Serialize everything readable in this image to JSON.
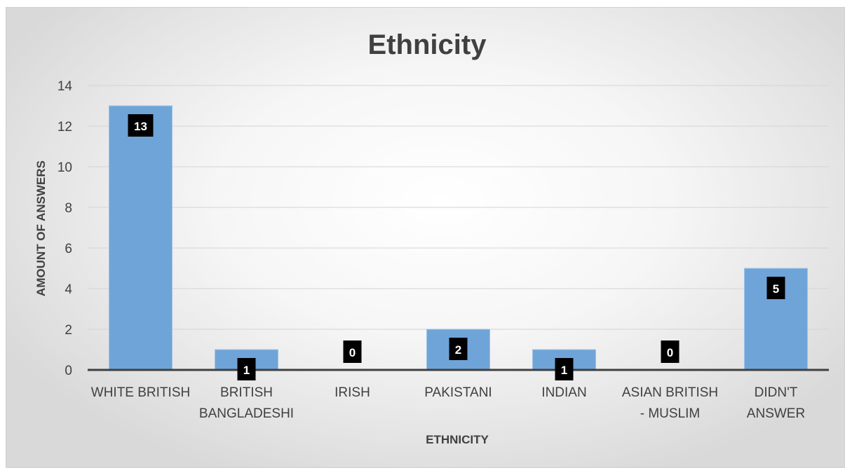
{
  "chart_data": {
    "type": "bar",
    "title": "Ethnicity",
    "xlabel": "ETHNICITY",
    "ylabel": "AMOUNT OF ANSWERS",
    "categories": [
      [
        "WHITE BRITISH"
      ],
      [
        "BRITISH",
        "BANGLADESHI"
      ],
      [
        "IRISH"
      ],
      [
        "PAKISTANI"
      ],
      [
        "INDIAN"
      ],
      [
        "ASIAN BRITISH",
        "- MUSLIM"
      ],
      [
        "DIDN'T",
        "ANSWER"
      ]
    ],
    "values": [
      13,
      1,
      0,
      2,
      1,
      0,
      5
    ],
    "ylim": [
      0,
      14
    ],
    "yticks": [
      0,
      2,
      4,
      6,
      8,
      10,
      12,
      14
    ],
    "grid": true,
    "data_labels": true,
    "colors": {
      "bar": "#6fa4d8",
      "bar_edge": "#9ec3e6",
      "label_bg": "#000000",
      "label_text": "#ffffff",
      "gridline": "#d4d4d4",
      "axis": "#404040"
    }
  }
}
